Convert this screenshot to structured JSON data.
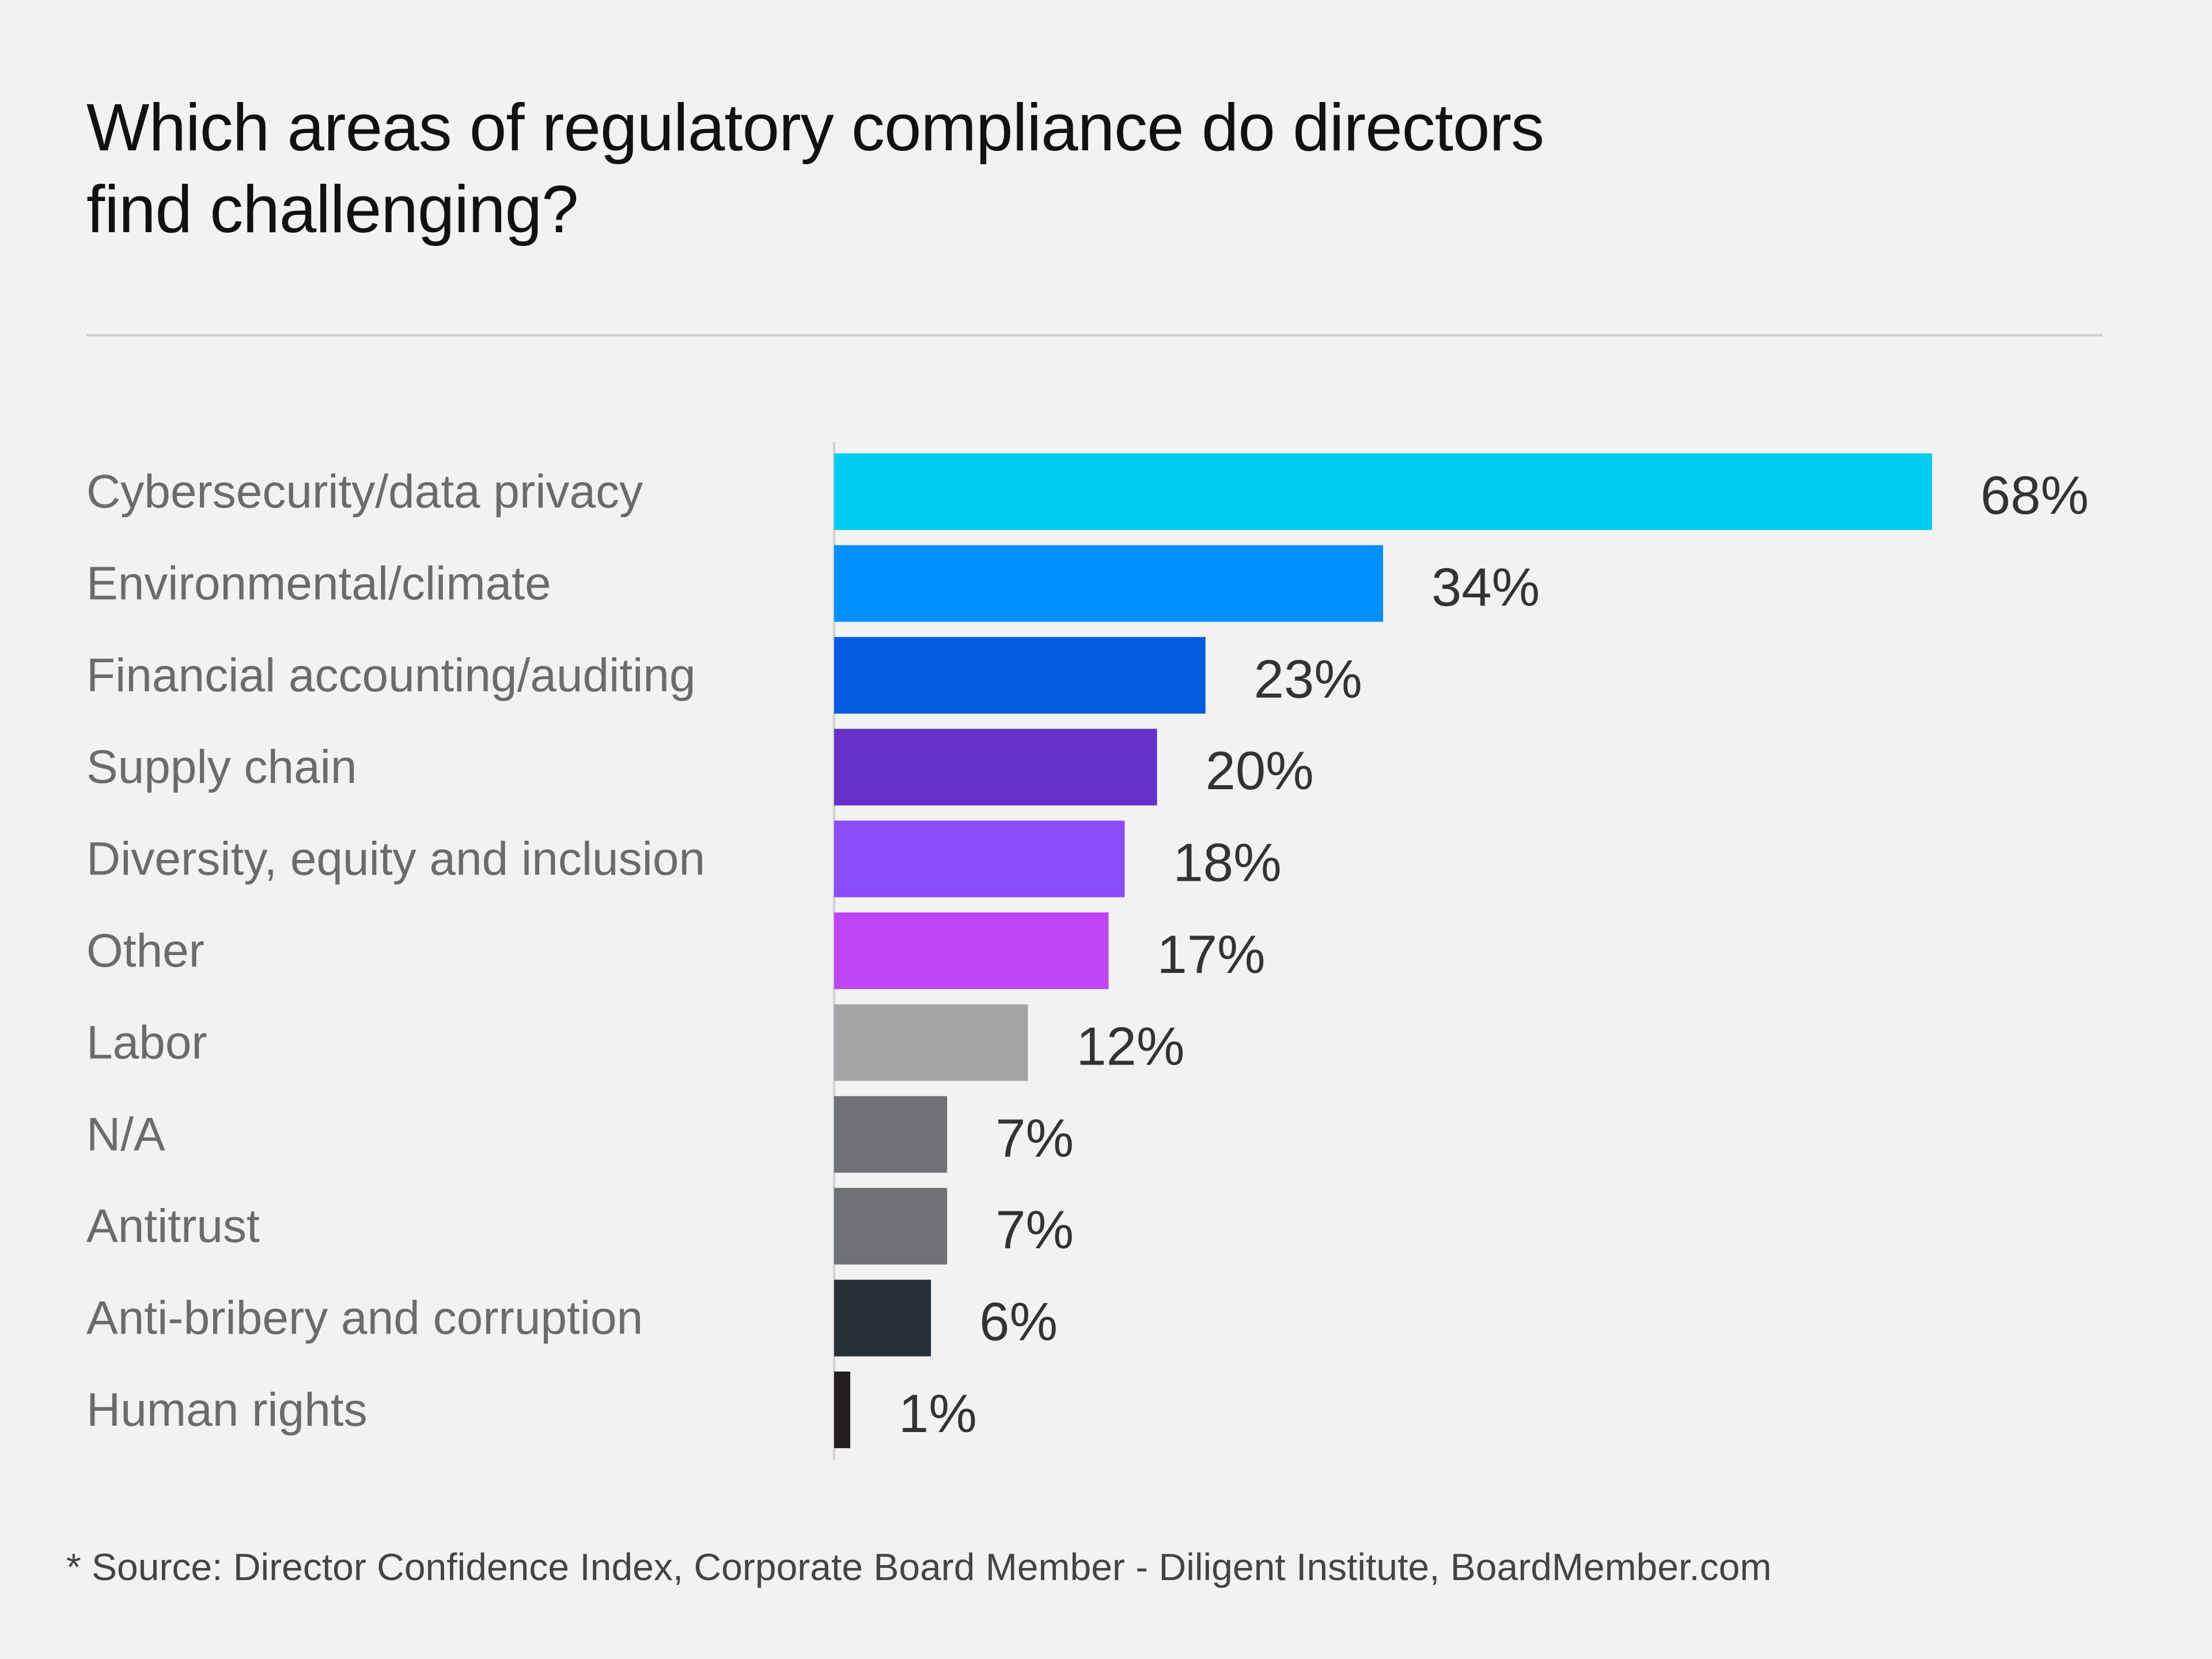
{
  "chart_data": {
    "type": "bar",
    "orientation": "horizontal",
    "title_lines": [
      "Which areas of regulatory compliance do directors",
      "find challenging?"
    ],
    "categories": [
      "Cybersecurity/data privacy",
      "Environmental/climate",
      "Financial accounting/auditing",
      "Supply chain",
      "Diversity, equity and inclusion",
      "Other",
      "Labor",
      "N/A",
      "Antitrust",
      "Anti-bribery and corruption",
      "Human rights"
    ],
    "values": [
      68,
      34,
      23,
      20,
      18,
      17,
      12,
      7,
      7,
      6,
      1
    ],
    "value_labels": [
      "68%",
      "34%",
      "23%",
      "20%",
      "18%",
      "17%",
      "12%",
      "7%",
      "7%",
      "6%",
      "1%"
    ],
    "colors": [
      "#00cdef",
      "#0091ff",
      "#035be0",
      "#6630cc",
      "#8b4cfa",
      "#bf45f4",
      "#a3a4a6",
      "#6f7175",
      "#6f7175",
      "#272d37",
      "#231f20"
    ],
    "xlim": [
      0,
      68
    ],
    "unit": "%",
    "grid": false,
    "legend": "none"
  },
  "footnote": "* Source: Director Confidence Index, Corporate Board Member - Diligent Institute, BoardMember.com"
}
